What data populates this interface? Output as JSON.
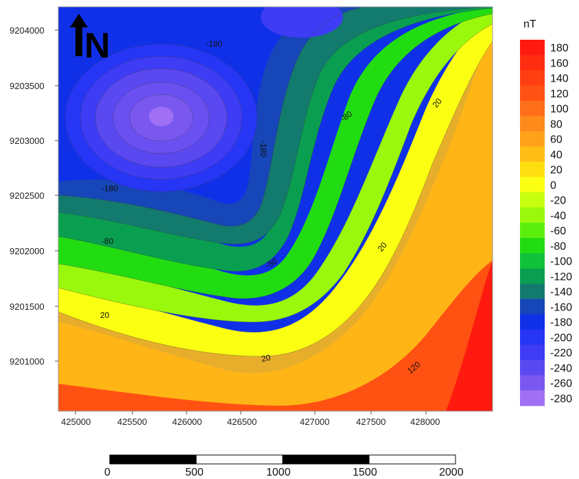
{
  "map": {
    "north_label": "N",
    "unit": "nT",
    "x_ticks": [
      "425000",
      "425500",
      "426000",
      "426500",
      "427000",
      "427500",
      "428000"
    ],
    "y_ticks": [
      "9204000",
      "9203500",
      "9203000",
      "9202500",
      "9202000",
      "9201500",
      "9201000"
    ],
    "contour_labels": [
      "-180",
      "-180",
      "-180",
      "-80",
      "-80",
      "-80",
      "20",
      "20",
      "20",
      "20",
      "120"
    ]
  },
  "legend": {
    "levels": [
      "180",
      "160",
      "140",
      "120",
      "100",
      "80",
      "60",
      "40",
      "20",
      "0",
      "-20",
      "-40",
      "-60",
      "-80",
      "-100",
      "-120",
      "-140",
      "-160",
      "-180",
      "-200",
      "-220",
      "-240",
      "-260",
      "-280"
    ],
    "colors": [
      "#ff1a10",
      "#ff2d10",
      "#ff3f12",
      "#ff5214",
      "#ff6e18",
      "#ff8a1c",
      "#ffa21a",
      "#ffbd16",
      "#ffde10",
      "#fbff12",
      "#c8ff0e",
      "#9af80c",
      "#5cef0e",
      "#22dc12",
      "#0fc23a",
      "#0a9f50",
      "#137a6e",
      "#1746b8",
      "#1030e8",
      "#2636f4",
      "#3e3cf4",
      "#5a48f0",
      "#7a58f0",
      "#a070f4"
    ]
  },
  "scale_bar": {
    "labels": [
      "0",
      "500",
      "1000",
      "1500",
      "2000"
    ]
  }
}
